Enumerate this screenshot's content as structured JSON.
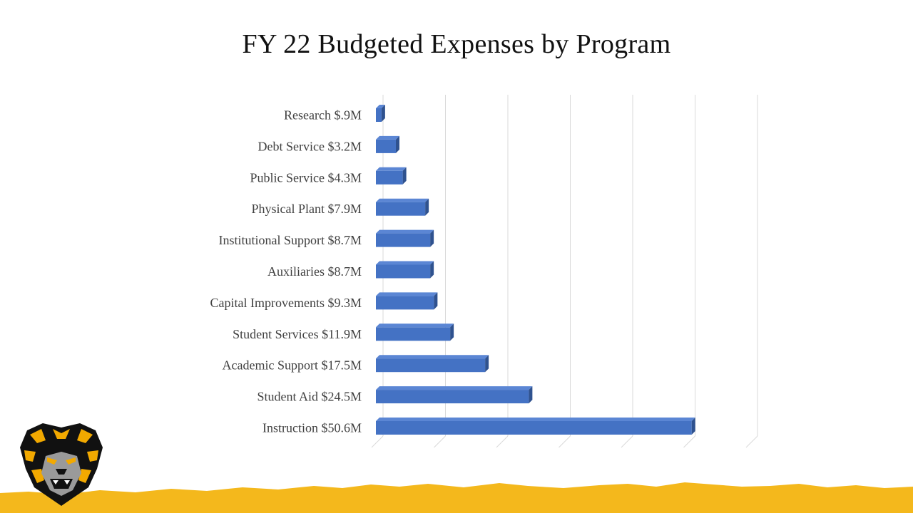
{
  "slide": {
    "title": "FY 22 Budgeted Expenses by Program"
  },
  "colors": {
    "bar_front": "#4472C4",
    "bar_top": "#5B86D4",
    "bar_side": "#2F528F",
    "gridline": "#D9D9D9",
    "label": "#404040",
    "footer_gold": "#F4B81C",
    "logo_black": "#111111",
    "logo_gold": "#F2A900",
    "logo_gray": "#9A9A9A"
  },
  "chart_data": {
    "type": "bar",
    "orientation": "horizontal",
    "title": "FY 22 Budgeted Expenses by Program",
    "unit": "$M",
    "categories": [
      "Research  $.9M",
      "Debt Service  $3.2M",
      "Public Service  $4.3M",
      "Physical Plant  $7.9M",
      "Institutional Support  $8.7M",
      "Auxiliaries  $8.7M",
      "Capital Improvements  $9.3M",
      "Student Services  $11.9M",
      "Academic Support  $17.5M",
      "Student Aid  $24.5M",
      "Instruction $50.6M"
    ],
    "values": [
      0.9,
      3.2,
      4.3,
      7.9,
      8.7,
      8.7,
      9.3,
      11.9,
      17.5,
      24.5,
      50.6
    ],
    "xlim": [
      0,
      60
    ],
    "grid": true,
    "tick_labels_shown": false,
    "legend": "none",
    "style": "3d-bar"
  },
  "logo": {
    "icon": "tiger-head-logo"
  }
}
